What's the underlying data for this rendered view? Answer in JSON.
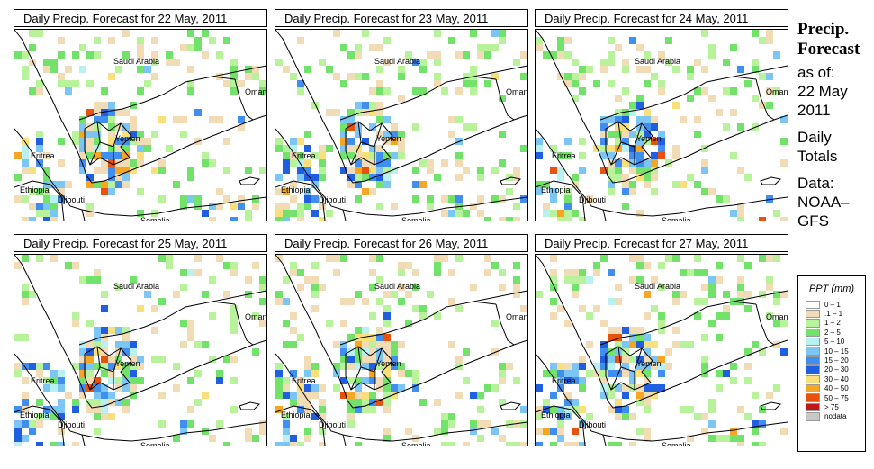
{
  "panels": [
    {
      "title": "Daily Precip. Forecast for  22 May, 2011",
      "seed": 11
    },
    {
      "title": "Daily Precip. Forecast for  23 May, 2011",
      "seed": 23
    },
    {
      "title": "Daily Precip. Forecast for  24 May, 2011",
      "seed": 37
    },
    {
      "title": "Daily Precip. Forecast for  25 May, 2011",
      "seed": 41
    },
    {
      "title": "Daily Precip. Forecast for  26 May, 2011",
      "seed": 53
    },
    {
      "title": "Daily Precip. Forecast for  27 May, 2011",
      "seed": 67
    }
  ],
  "map_labels": {
    "saudi": "Saudi Arabia",
    "oman": "Oman",
    "yemen": "Yemen",
    "eritrea": "Eritrea",
    "ethiopia": "Ethiopia",
    "djibouti": "Djibouti",
    "somalia": "Somalia"
  },
  "sidebar": {
    "title_line1": "Precip.",
    "title_line2": "Forecast",
    "asof": "as of:",
    "date_line1": "22 May",
    "date_line2": "2011",
    "totals_line1": "Daily",
    "totals_line2": "Totals",
    "data_line1": "Data:",
    "data_line2": "NOAA–",
    "data_line3": "GFS"
  },
  "legend": {
    "title": "PPT (mm)",
    "items": [
      {
        "label": "0 – 1",
        "color": "#ffffff"
      },
      {
        "label": ".1 – 1",
        "color": "#f2dcb6"
      },
      {
        "label": "1 – 2",
        "color": "#b8f29a"
      },
      {
        "label": "2 – 5",
        "color": "#72e26a"
      },
      {
        "label": "5 – 10",
        "color": "#b9f0f0"
      },
      {
        "label": "10 – 15",
        "color": "#7bc6f5"
      },
      {
        "label": "15 – 20",
        "color": "#3f8ef0"
      },
      {
        "label": "20 – 30",
        "color": "#1f5fe0"
      },
      {
        "label": "30 – 40",
        "color": "#f9e07a"
      },
      {
        "label": "40 – 50",
        "color": "#f5a623"
      },
      {
        "label": "50 – 75",
        "color": "#e8520c"
      },
      {
        "label": "> 75",
        "color": "#c01818"
      },
      {
        "label": "nodata",
        "color": "#c8c8c8"
      }
    ]
  }
}
